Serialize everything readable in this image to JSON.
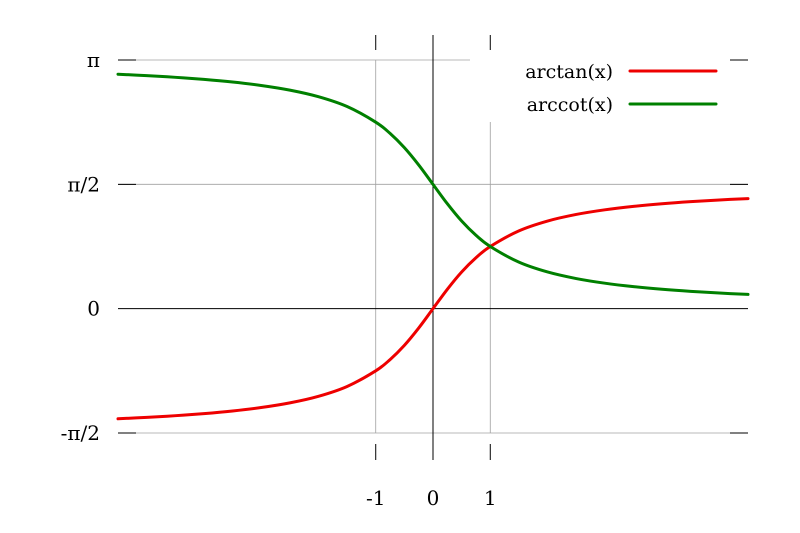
{
  "chart_data": {
    "type": "line",
    "title": "",
    "xlabel": "",
    "ylabel": "",
    "xlim": [
      -5.5,
      5.5
    ],
    "ylim": [
      -1.5708,
      3.1416
    ],
    "x_ticks": [
      {
        "value": -1,
        "label": "-1"
      },
      {
        "value": 0,
        "label": "0"
      },
      {
        "value": 1,
        "label": "1"
      }
    ],
    "y_ticks": [
      {
        "value": -1.5708,
        "label": "-π/2"
      },
      {
        "value": 0,
        "label": "0"
      },
      {
        "value": 1.5708,
        "label": "π/2"
      },
      {
        "value": 3.1416,
        "label": "π"
      }
    ],
    "grid": true,
    "legend_position": "top-right",
    "series": [
      {
        "name": "arctan(x)",
        "color": "#ee0000",
        "x": [
          -5.5,
          -5,
          -4.5,
          -4,
          -3.5,
          -3,
          -2.5,
          -2,
          -1.5,
          -1,
          -0.75,
          -0.5,
          -0.25,
          0,
          0.25,
          0.5,
          0.75,
          1,
          1.5,
          2,
          2.5,
          3,
          3.5,
          4,
          4.5,
          5,
          5.5
        ],
        "y": [
          -1.3909,
          -1.3734,
          -1.3521,
          -1.3258,
          -1.2925,
          -1.249,
          -1.1903,
          -1.1071,
          -0.9828,
          -0.7854,
          -0.6435,
          -0.4636,
          -0.245,
          0,
          0.245,
          0.4636,
          0.6435,
          0.7854,
          0.9828,
          1.1071,
          1.1903,
          1.249,
          1.2925,
          1.3258,
          1.3521,
          1.3734,
          1.3909
        ]
      },
      {
        "name": "arccot(x)",
        "color": "#008000",
        "x": [
          -5.5,
          -5,
          -4.5,
          -4,
          -3.5,
          -3,
          -2.5,
          -2,
          -1.5,
          -1,
          -0.75,
          -0.5,
          -0.25,
          0,
          0.25,
          0.5,
          0.75,
          1,
          1.5,
          2,
          2.5,
          3,
          3.5,
          4,
          4.5,
          5,
          5.5
        ],
        "y": [
          2.9617,
          2.9442,
          2.9229,
          2.8966,
          2.8633,
          2.8198,
          2.7611,
          2.6779,
          2.5536,
          2.3562,
          2.2143,
          2.0344,
          1.8158,
          1.5708,
          1.3258,
          1.1071,
          0.9273,
          0.7854,
          0.588,
          0.4636,
          0.3805,
          0.3218,
          0.2783,
          0.245,
          0.2187,
          0.1974,
          0.1799
        ]
      }
    ]
  }
}
